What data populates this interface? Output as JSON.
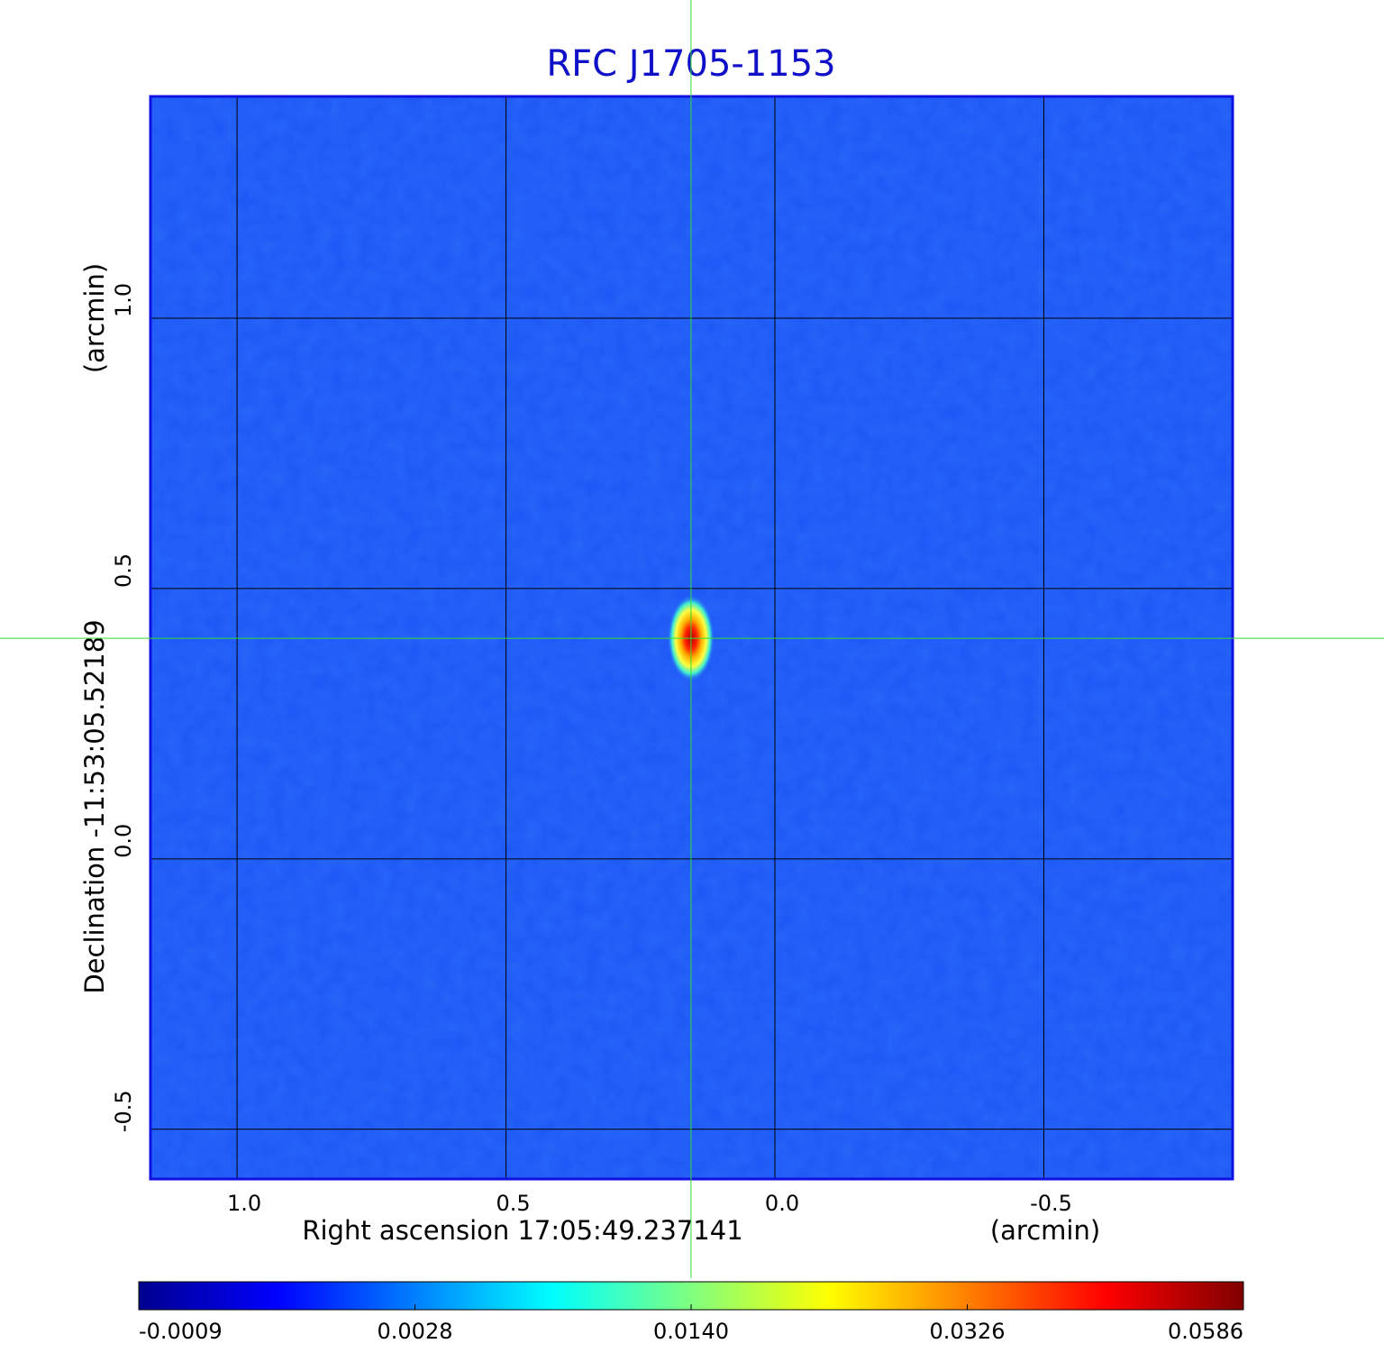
{
  "chart_data": {
    "type": "image",
    "title": "RFC J1705-1153",
    "x_label": "Right ascension  17:05:49.237141",
    "x_unit": "(arcmin)",
    "y_label": "Declination  -11:53:05.52189",
    "y_unit": "(arcmin)",
    "xlim": [
      1.161,
      -0.851
    ],
    "ylim": [
      -0.592,
      1.41
    ],
    "xticks": [
      {
        "value": 1,
        "label": "1.0"
      },
      {
        "value": 0.5,
        "label": "0.5"
      },
      {
        "value": 0,
        "label": "0.0"
      },
      {
        "value": -0.5,
        "label": "-0.5"
      }
    ],
    "yticks": [
      {
        "value": -0.5,
        "label": "-0.5"
      },
      {
        "value": 0,
        "label": "0.0"
      },
      {
        "value": 0.5,
        "label": "0.5"
      },
      {
        "value": 1,
        "label": "1.0"
      }
    ],
    "grid": true,
    "source": {
      "x": 0.156,
      "y": 0.408,
      "peak": 0.0586
    },
    "colorbar_ticks": [
      -0.0009,
      0.0028,
      {
        "value": 0.014,
        "label": "0.0140"
      },
      0.0326,
      0.0586
    ]
  }
}
